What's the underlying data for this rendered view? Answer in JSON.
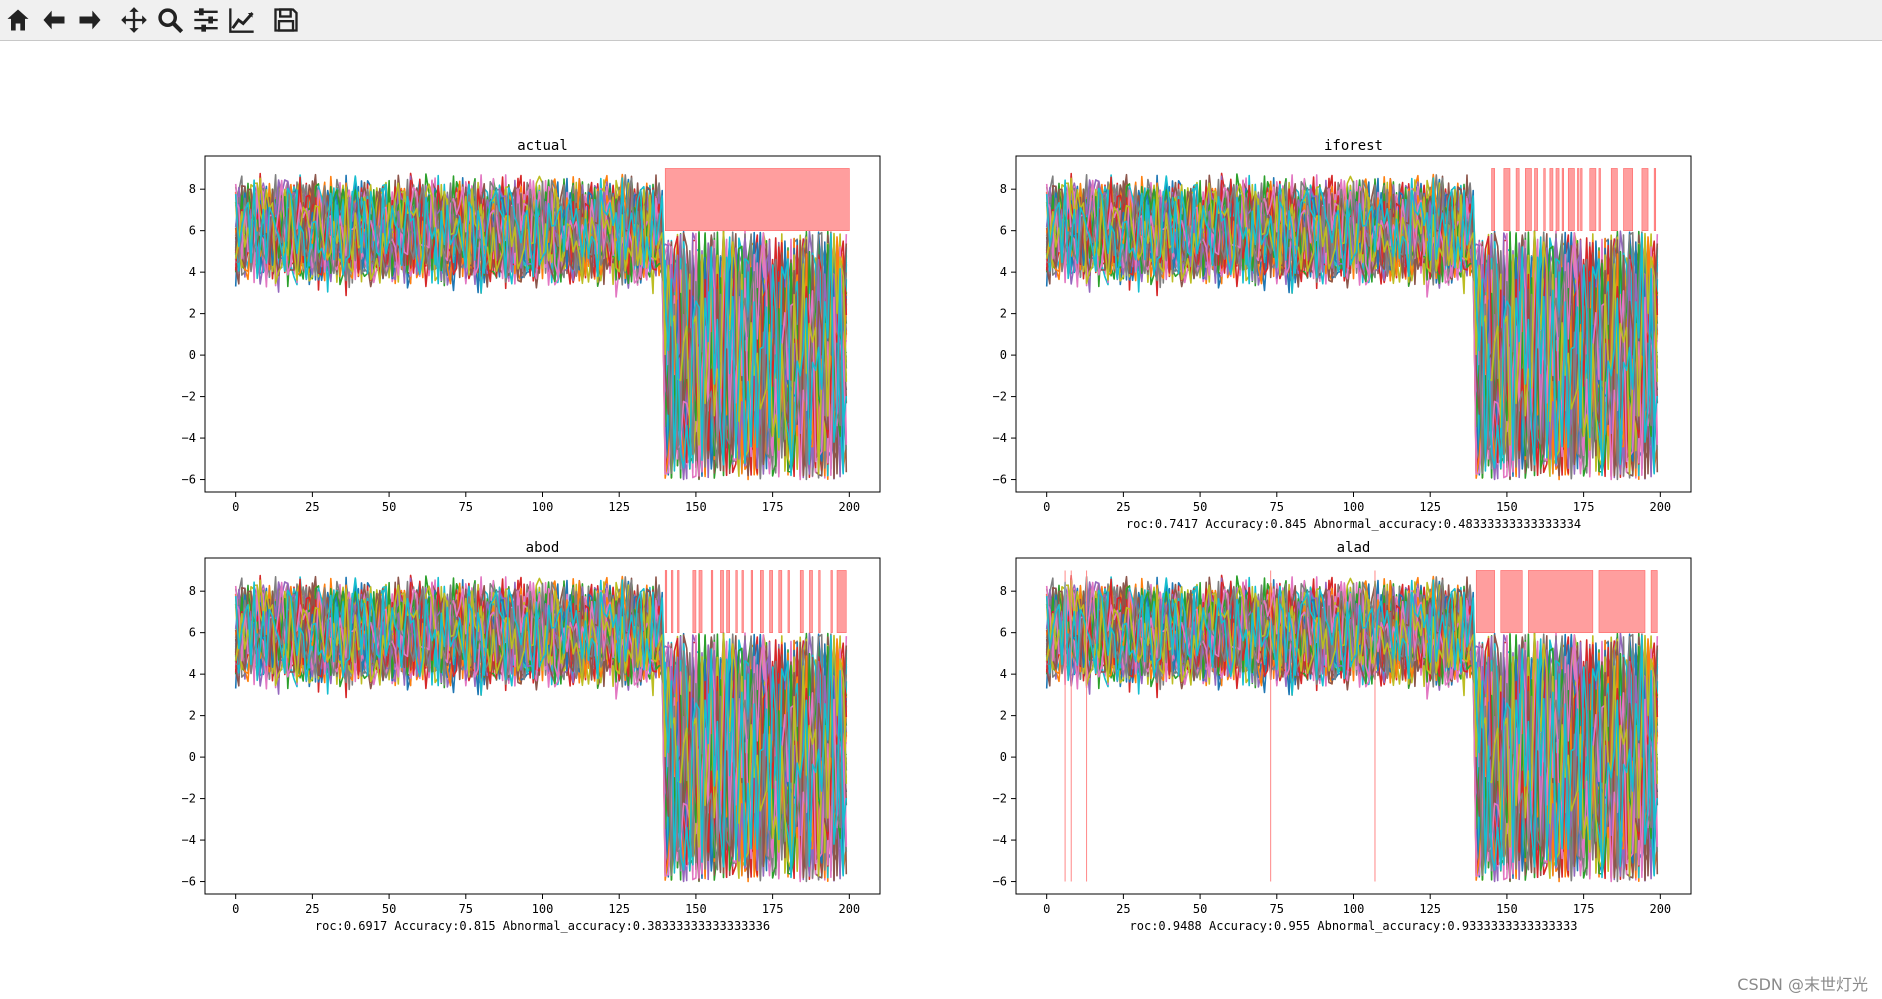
{
  "toolbar": {
    "buttons": [
      {
        "name": "home",
        "icon": "home-icon"
      },
      {
        "name": "back",
        "icon": "arrow-left-icon"
      },
      {
        "name": "forward",
        "icon": "arrow-right-icon"
      },
      {
        "name": "pan",
        "icon": "move-icon"
      },
      {
        "name": "zoom",
        "icon": "zoom-icon"
      },
      {
        "name": "subplots",
        "icon": "sliders-icon"
      },
      {
        "name": "edit-axes",
        "icon": "line-chart-icon"
      },
      {
        "name": "save",
        "icon": "save-icon"
      }
    ]
  },
  "watermark": "CSDN @末世灯光",
  "chart_data": [
    {
      "type": "line",
      "title": "actual",
      "xlabel": "",
      "xlim": [
        -10,
        210
      ],
      "ylim": [
        -6.6,
        9.6
      ],
      "xticks": [
        0,
        25,
        50,
        75,
        100,
        125,
        150,
        175,
        200
      ],
      "yticks": [
        -6,
        -4,
        -2,
        0,
        2,
        4,
        6,
        8
      ],
      "normal_range": [
        0,
        139
      ],
      "normal_band": [
        3.5,
        8.5
      ],
      "anomaly_range": [
        140,
        199
      ],
      "anomaly_band": [
        -6,
        6
      ],
      "highlight_spans": [
        [
          140,
          200
        ]
      ],
      "highlight_color": "#ff9999",
      "highlight_top": 9,
      "highlight_bottom": 6
    },
    {
      "type": "line",
      "title": "iforest",
      "xlabel": "roc:0.7417   Accuracy:0.845   Abnormal_accuracy:0.48333333333333334",
      "xlim": [
        -10,
        210
      ],
      "ylim": [
        -6.6,
        9.6
      ],
      "xticks": [
        0,
        25,
        50,
        75,
        100,
        125,
        150,
        175,
        200
      ],
      "yticks": [
        -6,
        -4,
        -2,
        0,
        2,
        4,
        6,
        8
      ],
      "normal_range": [
        0,
        139
      ],
      "normal_band": [
        3.5,
        8.5
      ],
      "anomaly_range": [
        140,
        199
      ],
      "anomaly_band": [
        -6,
        6
      ],
      "highlight_spans": [
        [
          145,
          146
        ],
        [
          149,
          151
        ],
        [
          153,
          154
        ],
        [
          156,
          158
        ],
        [
          159,
          160
        ],
        [
          162,
          162.5
        ],
        [
          164,
          165
        ],
        [
          166,
          167
        ],
        [
          168,
          168.5
        ],
        [
          170,
          172
        ],
        [
          173,
          173.5
        ],
        [
          174,
          174.5
        ],
        [
          177,
          179
        ],
        [
          180,
          180.5
        ],
        [
          184,
          186
        ],
        [
          188,
          191
        ],
        [
          194,
          196
        ],
        [
          198,
          198.5
        ]
      ],
      "highlight_color": "#ff9999",
      "highlight_top": 9,
      "highlight_bottom": 6
    },
    {
      "type": "line",
      "title": "abod",
      "xlabel": "roc:0.6917   Accuracy:0.815   Abnormal_accuracy:0.38333333333333336",
      "xlim": [
        -10,
        210
      ],
      "ylim": [
        -6.6,
        9.6
      ],
      "xticks": [
        0,
        25,
        50,
        75,
        100,
        125,
        150,
        175,
        200
      ],
      "yticks": [
        -6,
        -4,
        -2,
        0,
        2,
        4,
        6,
        8
      ],
      "normal_range": [
        0,
        139
      ],
      "normal_band": [
        3.5,
        8.5
      ],
      "anomaly_range": [
        140,
        199
      ],
      "anomaly_band": [
        -6,
        6
      ],
      "highlight_spans": [
        [
          140,
          140.5
        ],
        [
          142,
          142.5
        ],
        [
          144,
          144.5
        ],
        [
          149,
          150
        ],
        [
          151,
          152
        ],
        [
          155,
          155.5
        ],
        [
          158,
          159
        ],
        [
          160,
          161
        ],
        [
          163,
          163.5
        ],
        [
          165,
          165.5
        ],
        [
          168,
          168.5
        ],
        [
          171,
          172
        ],
        [
          174,
          175
        ],
        [
          177,
          178
        ],
        [
          180,
          180.5
        ],
        [
          184,
          185
        ],
        [
          187,
          188
        ],
        [
          190,
          190.5
        ],
        [
          194,
          194.5
        ],
        [
          196,
          199
        ]
      ],
      "highlight_color": "#ff9999",
      "highlight_top": 9,
      "highlight_bottom": 6
    },
    {
      "type": "line",
      "title": "alad",
      "xlabel": "roc:0.9488   Accuracy:0.955   Abnormal_accuracy:0.9333333333333333",
      "xlim": [
        -10,
        210
      ],
      "ylim": [
        -6.6,
        9.6
      ],
      "xticks": [
        0,
        25,
        50,
        75,
        100,
        125,
        150,
        175,
        200
      ],
      "yticks": [
        -6,
        -4,
        -2,
        0,
        2,
        4,
        6,
        8
      ],
      "normal_range": [
        0,
        139
      ],
      "normal_band": [
        3.5,
        8.5
      ],
      "anomaly_range": [
        140,
        199
      ],
      "anomaly_band": [
        -6,
        6
      ],
      "highlight_spans": [
        [
          140,
          146
        ],
        [
          148,
          155
        ],
        [
          157,
          178
        ],
        [
          180,
          195
        ],
        [
          197,
          199
        ]
      ],
      "false_positive_lines": [
        6,
        8,
        13,
        73,
        107
      ],
      "highlight_color": "#ff9999",
      "highlight_top": 9,
      "highlight_bottom": 6
    }
  ],
  "series_colors": [
    "#1f77b4",
    "#ff7f0e",
    "#2ca02c",
    "#d62728",
    "#9467bd",
    "#8c564b",
    "#e377c2",
    "#7f7f7f",
    "#bcbd22",
    "#17becf"
  ]
}
